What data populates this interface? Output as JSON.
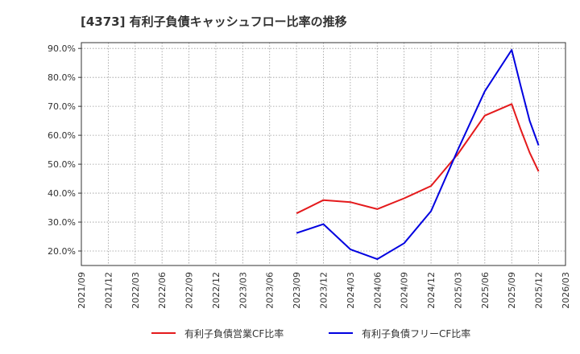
{
  "chart_data": {
    "type": "line",
    "title": "[4373]  有利子負債キャッシュフロー比率の推移",
    "xlabel": "",
    "ylabel": "",
    "x_ticks": [
      "2021/09",
      "2021/12",
      "2022/03",
      "2022/06",
      "2022/09",
      "2022/12",
      "2023/03",
      "2023/06",
      "2023/09",
      "2023/12",
      "2024/03",
      "2024/06",
      "2024/09",
      "2024/12",
      "2025/03",
      "2025/06",
      "2025/09",
      "2025/12",
      "2026/03"
    ],
    "y_ticks": [
      "20.0%",
      "30.0%",
      "40.0%",
      "50.0%",
      "60.0%",
      "70.0%",
      "80.0%",
      "90.0%"
    ],
    "ylim": [
      15,
      92
    ],
    "grid": true,
    "series": [
      {
        "name": "有利子負債営業CF比率",
        "color": "#e41a1c",
        "x": [
          "2023/09",
          "2023/12",
          "2024/03",
          "2024/06",
          "2024/09",
          "2024/12",
          "2025/03",
          "2025/06",
          "2025/09",
          "2025/10",
          "2025/11",
          "2025/12"
        ],
        "values": [
          33.0,
          37.6,
          36.9,
          34.5,
          38.2,
          42.5,
          53.5,
          66.8,
          70.8,
          62.0,
          54.0,
          47.5
        ]
      },
      {
        "name": "有利子負債フリーCF比率",
        "color": "#0000e0",
        "x": [
          "2023/09",
          "2023/12",
          "2024/03",
          "2024/06",
          "2024/09",
          "2024/12",
          "2025/03",
          "2025/06",
          "2025/09",
          "2025/10",
          "2025/11",
          "2025/12"
        ],
        "values": [
          26.2,
          29.3,
          20.6,
          17.2,
          22.7,
          33.8,
          55.0,
          75.2,
          89.5,
          77.0,
          65.0,
          56.5
        ]
      }
    ]
  }
}
